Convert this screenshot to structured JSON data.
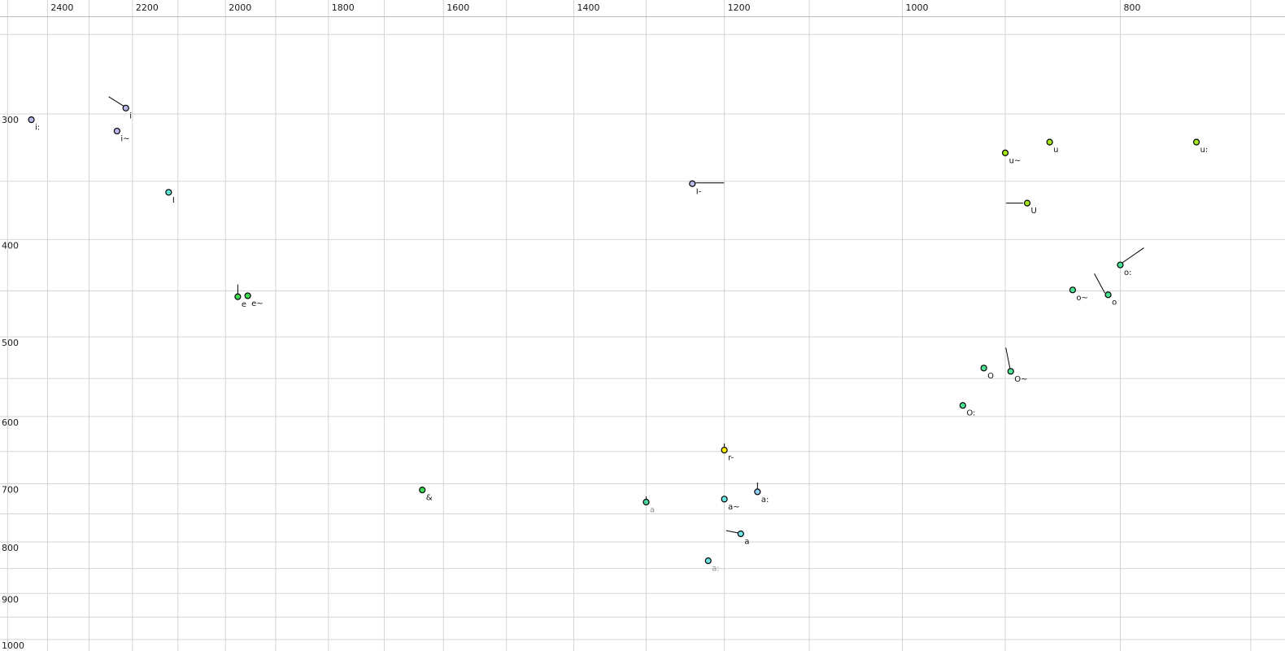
{
  "chart_data": {
    "type": "scatter",
    "title": "",
    "xlabel": "",
    "ylabel": "",
    "x_axis": {
      "unit": "Hz",
      "scale": "log",
      "reversed": true,
      "tick_labels": [
        2400,
        2200,
        2000,
        1800,
        1600,
        1400,
        1200,
        1000,
        800
      ],
      "grid_min": 700,
      "grid_max": 2500,
      "grid_step": 100
    },
    "y_axis": {
      "unit": "Hz",
      "scale": "log",
      "tick_labels": [
        300,
        400,
        500,
        600,
        700,
        800,
        900,
        1000
      ],
      "grid_min": 250,
      "grid_max": 1000,
      "grid_step": 50
    },
    "grid": true,
    "legend": false,
    "points": [
      {
        "label": "i:",
        "f2": 2440,
        "f1": 304,
        "fill": "lavender"
      },
      {
        "label": "i",
        "f2": 2215,
        "f1": 296,
        "fill": "lavender",
        "tail": [
          -21,
          -14,
          -2,
          -2
        ]
      },
      {
        "label": "i~",
        "f2": 2235,
        "f1": 312,
        "fill": "lavender"
      },
      {
        "label": "I",
        "f2": 2120,
        "f1": 359,
        "fill": "turquoise"
      },
      {
        "label": "e",
        "f2": 1975,
        "f1": 456,
        "fill": "green",
        "tail": [
          0,
          -15,
          0,
          -4
        ]
      },
      {
        "label": "e~",
        "f2": 1955,
        "f1": 455,
        "fill": "green"
      },
      {
        "label": "I-",
        "f2": 1240,
        "f1": 352,
        "fill": "lavender",
        "tail": [
          4,
          -1,
          39,
          -1
        ]
      },
      {
        "label": "u~",
        "f2": 900,
        "f1": 328,
        "fill": "yellowgreen"
      },
      {
        "label": "u",
        "f2": 860,
        "f1": 320,
        "fill": "yellowgreen"
      },
      {
        "label": "u:",
        "f2": 740,
        "f1": 320,
        "fill": "yellowgreen"
      },
      {
        "label": "U",
        "f2": 880,
        "f1": 368,
        "fill": "yellowgreen",
        "tail": [
          -26,
          0,
          -5,
          0
        ]
      },
      {
        "label": "o:",
        "f2": 800,
        "f1": 424,
        "fill": "springgreen",
        "tail": [
          3,
          -3,
          29,
          -21
        ]
      },
      {
        "label": "o~",
        "f2": 840,
        "f1": 449,
        "fill": "springgreen"
      },
      {
        "label": "o",
        "f2": 810,
        "f1": 454,
        "fill": "springgreen",
        "tail": [
          -17,
          -26,
          -4,
          -2
        ]
      },
      {
        "label": "O",
        "f2": 920,
        "f1": 537,
        "fill": "springgreen"
      },
      {
        "label": "O~",
        "f2": 895,
        "f1": 541,
        "fill": "springgreen",
        "tail": [
          -6,
          -29,
          -1,
          -4
        ]
      },
      {
        "label": "O:",
        "f2": 940,
        "f1": 585,
        "fill": "springgreen"
      },
      {
        "label": "r-",
        "f2": 1200,
        "f1": 648,
        "fill": "yellow",
        "tail": [
          0,
          -8,
          0,
          -3.5
        ]
      },
      {
        "label": "&",
        "f2": 1635,
        "f1": 710,
        "fill": "green"
      },
      {
        "label": "a",
        "f2": 1300,
        "f1": 730,
        "fill": "seagreen",
        "label_color": "gray",
        "tail": [
          0,
          -7,
          0,
          -3
        ]
      },
      {
        "label": "a~",
        "f2": 1200,
        "f1": 725,
        "fill": "cyan"
      },
      {
        "label": "a:",
        "f2": 1160,
        "f1": 713,
        "fill": "lightblue",
        "tail": [
          0,
          -11.5,
          0,
          -4
        ]
      },
      {
        "label": "a",
        "f2": 1180,
        "f1": 785,
        "fill": "cyan",
        "tail": [
          -18,
          -4,
          -3,
          -1
        ]
      },
      {
        "label": "a:",
        "f2": 1220,
        "f1": 835,
        "fill": "cyan",
        "label_color": "gray"
      }
    ]
  },
  "colors": {
    "lavender": "#b9b9ea",
    "turquoise": "#5ce3cf",
    "green": "#3edc55",
    "yellowgreen": "#a5e51c",
    "springgreen": "#4ae293",
    "yellow": "#ffec00",
    "cyan": "#6ce4e4",
    "lightblue": "#8fd0f0",
    "seagreen": "#4cd6a0",
    "label": "#111111",
    "label_gray": "#8f8f8f",
    "tick_label": "#1a1a1a",
    "grid": "#d4d4d4",
    "axis_border": "#bdbdbd",
    "point_stroke": "#000000",
    "background": "#ffffff"
  }
}
